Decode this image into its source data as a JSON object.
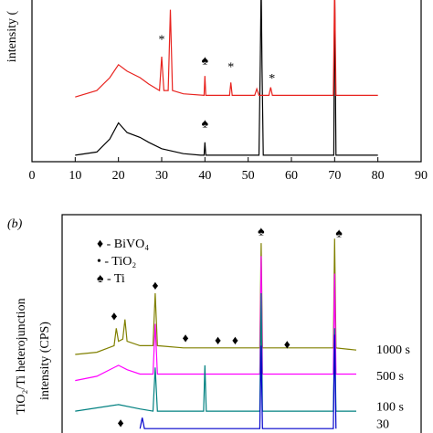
{
  "chart_data": [
    {
      "type": "line",
      "ylabel": "intensity (",
      "xlim": [
        0,
        90
      ],
      "ylim": [
        0,
        100
      ],
      "xticks": [
        0,
        10,
        20,
        30,
        40,
        50,
        60,
        70,
        80,
        90
      ],
      "series": [
        {
          "color": "#000000",
          "x": [
            10,
            15,
            18,
            20,
            22,
            25,
            27,
            30,
            35,
            39,
            39.8,
            40,
            40.2,
            45,
            52.5,
            52.8,
            53,
            53.2,
            53.5,
            60,
            69.8,
            70,
            70.3,
            75,
            80
          ],
          "values": [
            4,
            6,
            14,
            24,
            18,
            15,
            12,
            8,
            5,
            4,
            4,
            12,
            4,
            4,
            4,
            60,
            110,
            60,
            4,
            4,
            4,
            110,
            4,
            4,
            4
          ]
        },
        {
          "color": "#e8231f",
          "x": [
            10,
            15,
            18,
            20,
            22,
            25,
            27,
            29.5,
            30,
            30.5,
            31.5,
            32,
            32.5,
            35,
            39.8,
            40,
            40.2,
            45.7,
            46,
            46.3,
            51.5,
            52,
            52.5,
            54.8,
            55.2,
            55.6,
            60,
            69.7,
            70,
            70.3,
            75,
            80
          ],
          "values": [
            40,
            44,
            52,
            60,
            56,
            52,
            48,
            44,
            65,
            44,
            44,
            94,
            44,
            42,
            41,
            53,
            41,
            41,
            49,
            41,
            41,
            45,
            41,
            41,
            46,
            41,
            41,
            41,
            110,
            41,
            41,
            41
          ]
        }
      ],
      "annotations": [
        {
          "text": "*",
          "x": 30,
          "y": 75
        },
        {
          "text": "*",
          "x": 33,
          "y": 101
        },
        {
          "text": "♠",
          "x": 40,
          "y": 62
        },
        {
          "text": "*",
          "x": 46,
          "y": 58
        },
        {
          "text": "*",
          "x": 55.5,
          "y": 51
        },
        {
          "text": "♠",
          "x": 40,
          "y": 23
        }
      ]
    },
    {
      "type": "line",
      "panel_label": "(b)",
      "ylabel": "intensity (CPS)",
      "side_label": "TiO₂/Ti heterojunction",
      "xlim": [
        0,
        90
      ],
      "ylim": [
        0,
        100
      ],
      "legend": [
        "♦ - BiVO₄",
        "• - TiO₂",
        "♠ - Ti"
      ],
      "series": [
        {
          "name": "1000 s",
          "color": "#808000",
          "x": [
            10,
            15,
            19,
            19.5,
            20,
            21,
            21.5,
            22,
            25,
            28,
            28.5,
            29,
            35,
            40,
            45,
            52.7,
            53,
            53.3,
            60,
            69.7,
            70,
            70.3,
            75
          ],
          "values": [
            36,
            37,
            40,
            48,
            42,
            43,
            52,
            42,
            40,
            40,
            64,
            40,
            39,
            39,
            39,
            39,
            87,
            39,
            39,
            39,
            89,
            39,
            38
          ]
        },
        {
          "name": "500 s",
          "color": "#ff00ff",
          "x": [
            10,
            15,
            20,
            22,
            25,
            28,
            28.5,
            29,
            35,
            40,
            45,
            52.7,
            53,
            53.3,
            60,
            69.7,
            70,
            70.3,
            75
          ],
          "values": [
            24,
            26,
            31,
            29,
            27,
            27,
            50,
            27,
            27,
            27,
            27,
            27,
            81,
            27,
            27,
            27,
            73,
            27,
            27
          ]
        },
        {
          "name": "100 s",
          "color": "#008080",
          "x": [
            10,
            20,
            25,
            28,
            28.5,
            29,
            39.7,
            40,
            40.3,
            52.7,
            53,
            53.3,
            60,
            69.7,
            70,
            70.3,
            75
          ],
          "values": [
            10,
            13,
            11,
            10,
            30,
            10,
            10,
            31,
            10,
            10,
            64,
            10,
            10,
            10,
            48,
            10,
            10
          ]
        },
        {
          "name": "30",
          "color": "#0000cc",
          "x": [
            25,
            25.5,
            26,
            52.7,
            53,
            53.3,
            69.7,
            70,
            70.3
          ],
          "values": [
            2,
            7,
            2,
            2,
            40,
            2,
            2,
            45,
            2
          ]
        }
      ],
      "annotations": [
        {
          "text": "♦",
          "x": 19,
          "y": 53
        },
        {
          "text": "♦",
          "x": 28.5,
          "y": 67
        },
        {
          "text": "♦",
          "x": 35.5,
          "y": 43
        },
        {
          "text": "♦",
          "x": 43,
          "y": 42
        },
        {
          "text": "♦",
          "x": 47,
          "y": 42
        },
        {
          "text": "♦",
          "x": 59,
          "y": 40
        },
        {
          "text": "♠",
          "x": 53,
          "y": 92
        },
        {
          "text": "♠",
          "x": 71,
          "y": 91
        },
        {
          "text": "♦",
          "x": 20.5,
          "y": 4
        }
      ]
    }
  ]
}
